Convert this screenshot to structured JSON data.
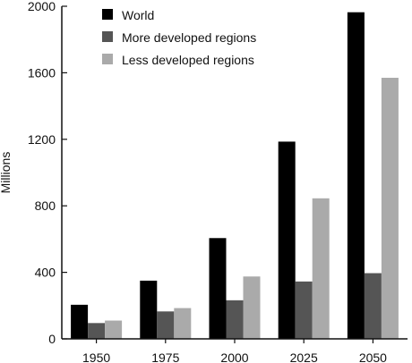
{
  "chart_data": {
    "type": "bar",
    "title": "",
    "xlabel": "",
    "ylabel": "Millions",
    "categories": [
      "1950",
      "1975",
      "2000",
      "2025",
      "2050"
    ],
    "ylim": [
      0,
      2000
    ],
    "yticks": [
      0,
      400,
      800,
      1200,
      1600,
      2000
    ],
    "grid": false,
    "legend_position": "top-left",
    "series": [
      {
        "name": "World",
        "color": "#000000",
        "values": [
          205,
          350,
          606,
          1186,
          1964
        ]
      },
      {
        "name": "More developed regions",
        "color": "#555555",
        "values": [
          95,
          165,
          232,
          345,
          395
        ]
      },
      {
        "name": "Less developed regions",
        "color": "#aaaaaa",
        "values": [
          110,
          185,
          375,
          845,
          1570
        ]
      }
    ]
  }
}
